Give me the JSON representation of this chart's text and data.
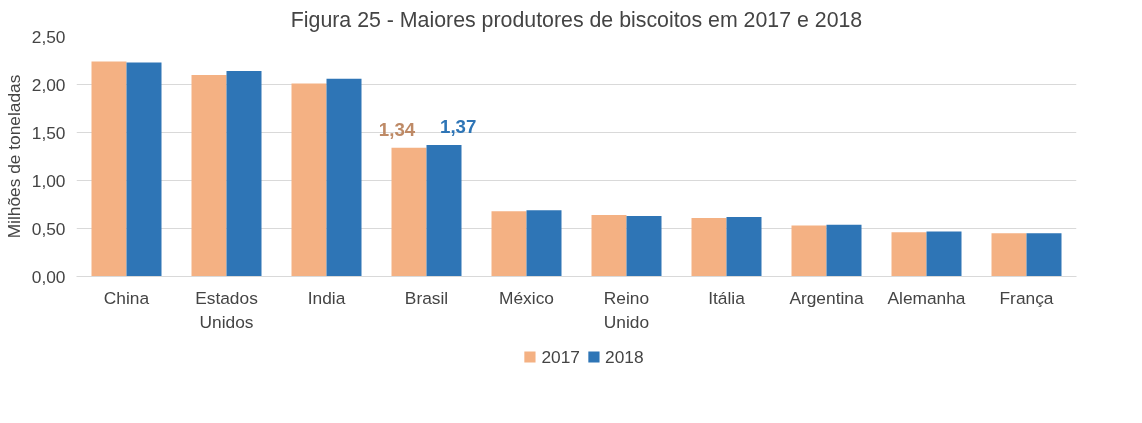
{
  "chart_data": {
    "type": "bar",
    "title": "Figura 25 - Maiores produtores de biscoitos em 2017 e 2018",
    "ylabel": "Milhões de toneladas",
    "categories": [
      "China",
      "Estados Unidos",
      "India",
      "Brasil",
      "México",
      "Reino Unido",
      "Itália",
      "Argentina",
      "Alemanha",
      "França"
    ],
    "series": [
      {
        "name": "2017",
        "color": "#f4b183",
        "values": [
          2.24,
          2.1,
          2.01,
          1.34,
          0.68,
          0.64,
          0.61,
          0.53,
          0.46,
          0.45
        ],
        "value_labels": [
          null,
          null,
          null,
          "1,34",
          null,
          null,
          null,
          null,
          null,
          null
        ]
      },
      {
        "name": "2018",
        "color": "#2e75b6",
        "values": [
          2.23,
          2.14,
          2.06,
          1.37,
          0.69,
          0.63,
          0.62,
          0.54,
          0.47,
          0.45
        ],
        "value_labels": [
          null,
          null,
          null,
          "1,37",
          null,
          null,
          null,
          null,
          null,
          null
        ]
      }
    ],
    "ylim": [
      0,
      2.5
    ],
    "yticks": [
      {
        "value": 0,
        "label": "0,00"
      },
      {
        "value": 0.5,
        "label": "0,50"
      },
      {
        "value": 1,
        "label": "1,00"
      },
      {
        "value": 1.5,
        "label": "1,50"
      },
      {
        "value": 2,
        "label": "2,00"
      },
      {
        "value": 2.5,
        "label": "2,50"
      }
    ],
    "grid": "y",
    "legend": "bottom"
  }
}
